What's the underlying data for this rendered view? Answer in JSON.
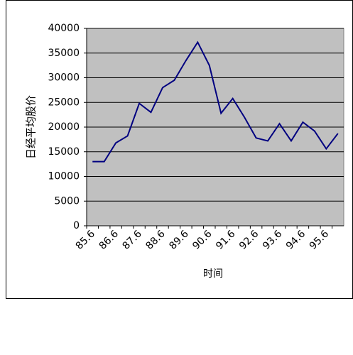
{
  "chart_data": {
    "type": "line",
    "y_label": "日经平均股价",
    "x_label": "时间",
    "categories": [
      "85.6",
      null,
      "86.6",
      null,
      "87.6",
      null,
      "88.6",
      null,
      "89.6",
      null,
      "90.6",
      null,
      "91.6",
      null,
      "92.6",
      null,
      "93.6",
      null,
      "94.6",
      null,
      "95.6",
      null
    ],
    "series": [
      {
        "name": "日经平均股价",
        "color": "#000080",
        "values": [
          13000,
          13000,
          16800,
          18200,
          24800,
          23000,
          28000,
          29500,
          33500,
          37200,
          32500,
          22800,
          25800,
          22000,
          17800,
          17200,
          20700,
          17200,
          21000,
          19200,
          15600,
          18700
        ]
      }
    ],
    "ylim": [
      0,
      40000
    ],
    "yticks": [
      0,
      5000,
      10000,
      15000,
      20000,
      25000,
      30000,
      35000,
      40000
    ],
    "grid": true,
    "plot_background": "#c0c0c0"
  }
}
